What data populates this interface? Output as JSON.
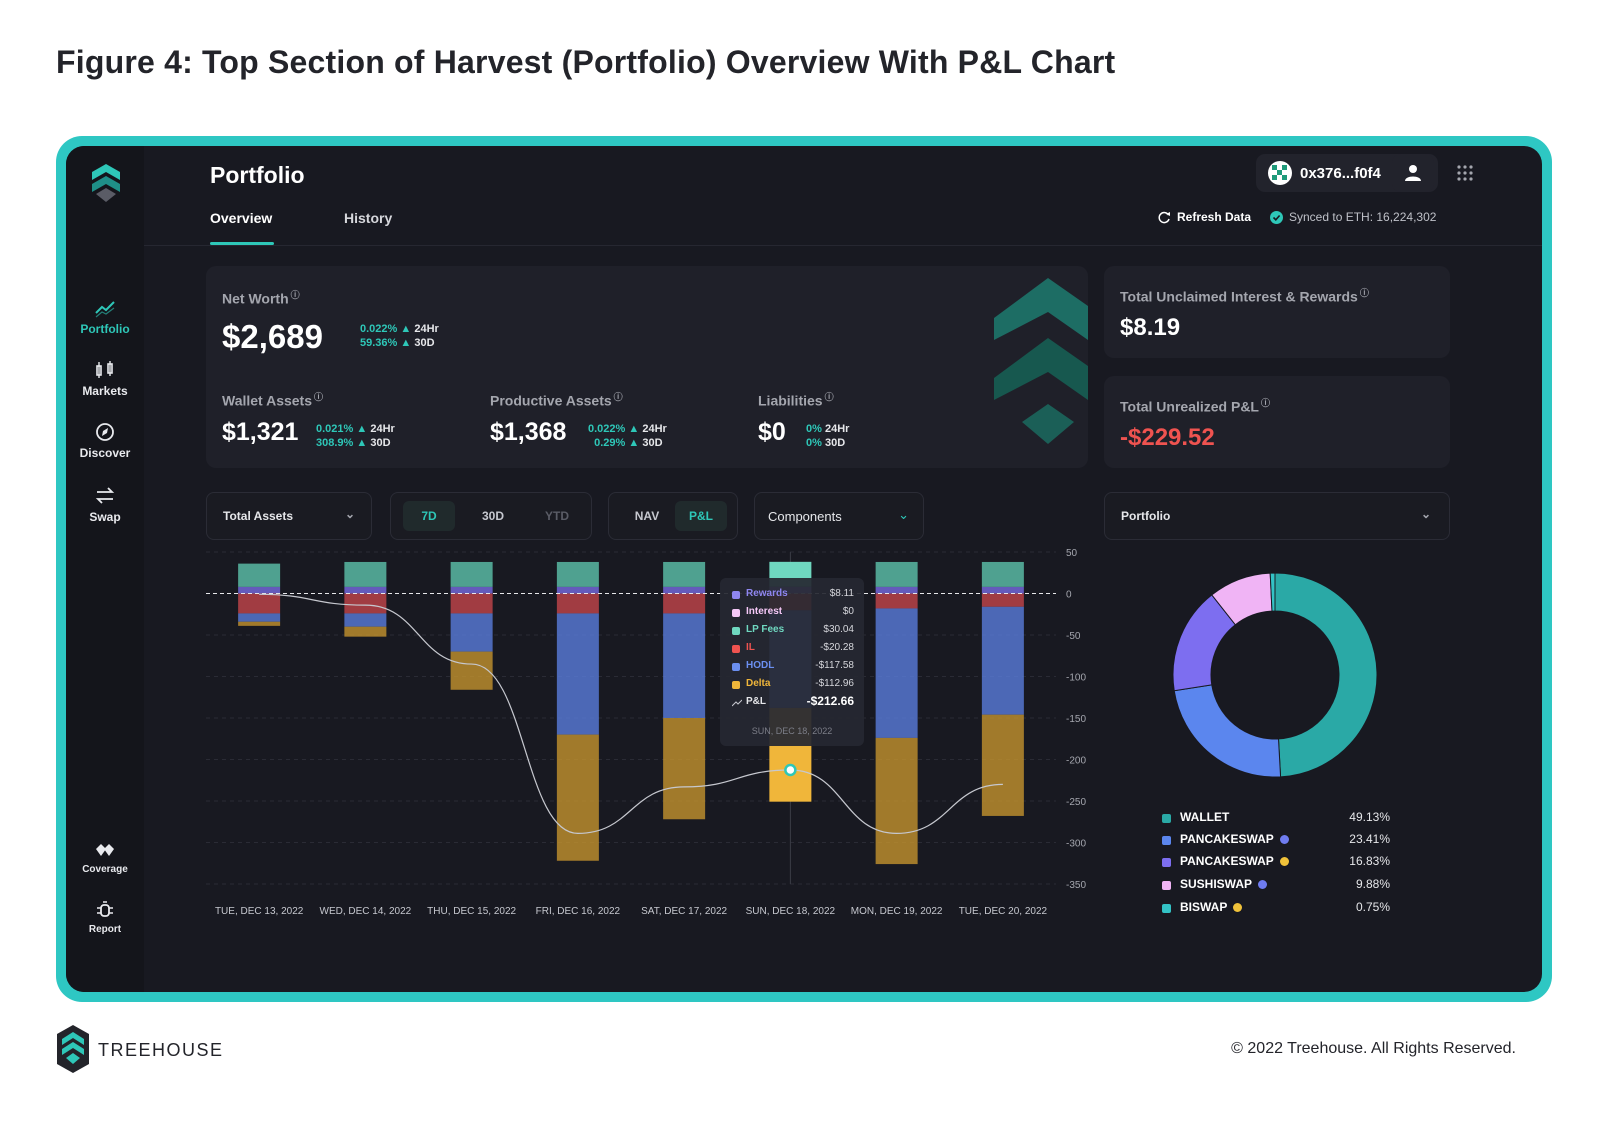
{
  "figure": {
    "title": "Figure 4: Top Section of Harvest (Portfolio) Overview With P&L Chart"
  },
  "footer": {
    "brand": "TREEHOUSE",
    "copyright": "© 2022 Treehouse. All Rights Reserved."
  },
  "colors": {
    "accent": "#2ec7b8",
    "frame": "#2ec7c3",
    "negative": "#ef5350",
    "background": "#181921"
  },
  "sidebar": {
    "logo": "treehouse-logo",
    "items": [
      {
        "label": "Portfolio",
        "icon": "trend-line-icon",
        "active": true
      },
      {
        "label": "Markets",
        "icon": "candlestick-icon"
      },
      {
        "label": "Discover",
        "icon": "compass-icon"
      },
      {
        "label": "Swap",
        "icon": "swap-arrows-icon"
      }
    ],
    "bottom_items": [
      {
        "label": "Coverage",
        "icon": "coverage-icon"
      },
      {
        "label": "Report",
        "icon": "bug-report-icon"
      }
    ]
  },
  "header": {
    "title": "Portfolio",
    "tabs": [
      {
        "label": "Overview",
        "active": true
      },
      {
        "label": "History"
      }
    ],
    "wallet": "0x376...f0f4",
    "refresh_label": "Refresh Data",
    "synced_label": "Synced to ETH: 16,224,302"
  },
  "net_worth": {
    "label": "Net Worth",
    "value": "$2,689",
    "change_24h": "0.022%",
    "change_30d": "59.36%",
    "tag_24h": "24Hr",
    "tag_30d": "30D"
  },
  "wallet_assets": {
    "label": "Wallet Assets",
    "value": "$1,321",
    "change_24h": "0.021%",
    "change_30d": "308.9%"
  },
  "productive_assets": {
    "label": "Productive Assets",
    "value": "$1,368",
    "change_24h": "0.022%",
    "change_30d": "0.29%"
  },
  "liabilities": {
    "label": "Liabilities",
    "value": "$0",
    "change_24h": "0%",
    "change_30d": "0%"
  },
  "unclaimed": {
    "label": "Total Unclaimed Interest & Rewards",
    "value": "$8.19"
  },
  "unrealized": {
    "label": "Total Unrealized P&L",
    "value": "-$229.52"
  },
  "controls": {
    "assets_select": "Total Assets",
    "ranges": [
      "7D",
      "30D",
      "YTD"
    ],
    "active_range": "7D",
    "modes": [
      "NAV",
      "P&L"
    ],
    "active_mode": "P&L",
    "components_select": "Components",
    "portfolio_select": "Portfolio"
  },
  "chart_data": [
    {
      "type": "bar",
      "stacked": true,
      "categories": [
        "TUE, DEC 13, 2022",
        "WED, DEC 14, 2022",
        "THU, DEC 15, 2022",
        "FRI, DEC 16, 2022",
        "SAT, DEC 17, 2022",
        "SUN, DEC 18, 2022",
        "MON, DEC 19, 2022",
        "TUE, DEC 20, 2022"
      ],
      "yticks": [
        50,
        0,
        -50,
        -100,
        -150,
        -200,
        -250,
        -300,
        -350
      ],
      "ylim": [
        -350,
        50
      ],
      "series": [
        {
          "name": "Rewards",
          "color": "#7a6ee8",
          "values": [
            8,
            8,
            8,
            8,
            8,
            8.11,
            8,
            8
          ]
        },
        {
          "name": "Interest",
          "color": "#f2b6f5",
          "values": [
            0,
            0,
            0,
            0,
            0,
            0,
            0,
            0
          ]
        },
        {
          "name": "LP Fees",
          "color": "#5fc8b0",
          "values": [
            28,
            30,
            30,
            30,
            30,
            30.04,
            30,
            30
          ]
        },
        {
          "name": "IL",
          "color": "#c8474b",
          "values": [
            -24,
            -24,
            -24,
            -24,
            -24,
            -20.28,
            -18,
            -16
          ]
        },
        {
          "name": "HODL",
          "color": "#5b7fe0",
          "values": [
            -10,
            -16,
            -46,
            -146,
            -126,
            -117.58,
            -156,
            -130
          ]
        },
        {
          "name": "Delta",
          "color": "#c8962e",
          "values": [
            -5,
            -12,
            -46,
            -152,
            -122,
            -112.96,
            -152,
            -122
          ]
        }
      ],
      "pnl_line": {
        "name": "P&L",
        "values": [
          -1,
          -14,
          -85,
          -289,
          -233,
          -212.66,
          -289,
          -230
        ]
      },
      "tooltip": {
        "date": "SUN, DEC 18, 2022",
        "pnl_label": "P&L",
        "pnl_value": "-$212.66",
        "rows": [
          {
            "name": "Rewards",
            "value": "$8.11",
            "color": "#8f86f0"
          },
          {
            "name": "Interest",
            "value": "$0",
            "color": "#f5c8f7"
          },
          {
            "name": "LP Fees",
            "value": "$30.04",
            "color": "#6fd8c0"
          },
          {
            "name": "IL",
            "value": "-$20.28",
            "color": "#ef5350"
          },
          {
            "name": "HODL",
            "value": "-$117.58",
            "color": "#6b8ff0"
          },
          {
            "name": "Delta",
            "value": "-$112.96",
            "color": "#f0b63a"
          }
        ]
      }
    },
    {
      "type": "pie",
      "donut": true,
      "slices": [
        {
          "name": "WALLET",
          "value": 49.13,
          "label": "49.13%",
          "color": "#2aa9a6"
        },
        {
          "name": "PANCAKESWAP",
          "value": 23.41,
          "label": "23.41%",
          "color": "#5b86ee",
          "chain_color": "#6f7cf0"
        },
        {
          "name": "PANCAKESWAP",
          "value": 16.83,
          "label": "16.83%",
          "color": "#7d6ef0",
          "chain_color": "#f0c23a"
        },
        {
          "name": "SUSHISWAP",
          "value": 9.88,
          "label": "9.88%",
          "color": "#f0b4f5",
          "chain_color": "#6f7cf0"
        },
        {
          "name": "BISWAP",
          "value": 0.75,
          "label": "0.75%",
          "color": "#33c2c5",
          "chain_color": "#f0c23a"
        }
      ]
    }
  ]
}
